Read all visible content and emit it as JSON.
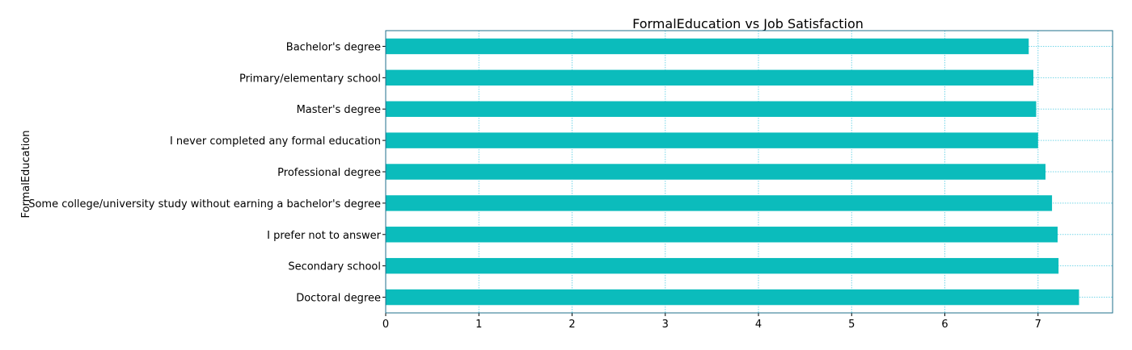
{
  "chart_data": {
    "type": "bar",
    "orientation": "horizontal",
    "title": "FormalEducation vs Job Satisfaction",
    "xlabel": "",
    "ylabel": "FormalEducation",
    "categories": [
      "Bachelor's degree",
      "Primary/elementary school",
      "Master's degree",
      "I never completed any formal education",
      "Professional degree",
      "Some college/university study without earning a bachelor's degree",
      "I prefer not to answer",
      "Secondary school",
      "Doctoral degree"
    ],
    "values": [
      6.9,
      6.95,
      6.98,
      7.0,
      7.08,
      7.15,
      7.21,
      7.22,
      7.44
    ],
    "xlim": [
      0,
      7.8
    ],
    "xticks": [
      0,
      1,
      2,
      3,
      4,
      5,
      6,
      7
    ],
    "grid": true,
    "legend": "none",
    "colors": {
      "bar": "#0bbcbc",
      "grid": "#75d6e8",
      "axis": "#1f6f8b"
    }
  }
}
